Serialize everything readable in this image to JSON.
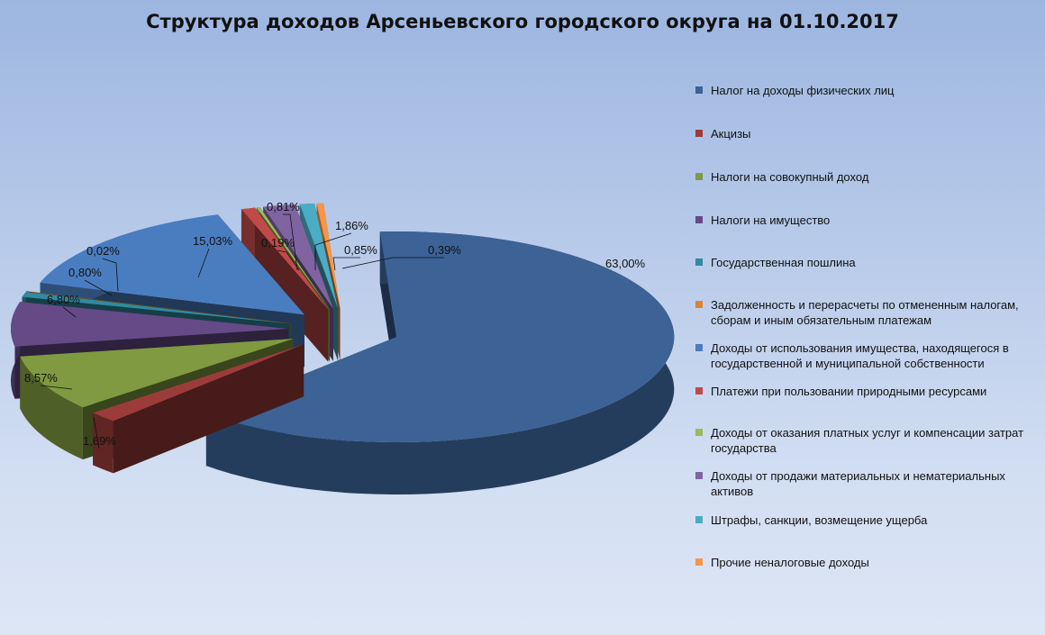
{
  "chart_data": {
    "type": "pie",
    "title": "Структура доходов Арсеньевского городского округа на 01.10.2017",
    "legend_placement": "right",
    "three_d": true,
    "slices": [
      {
        "name": "Налог на доходы физических лиц",
        "value": 63.0,
        "label": "63,00%",
        "color": "#3c6296"
      },
      {
        "name": "Акцизы",
        "value": 1.69,
        "label": "1,69%",
        "color": "#9c3c3a"
      },
      {
        "name": "Налоги на совокупный доход",
        "value": 8.57,
        "label": "8,57%",
        "color": "#7f9a40"
      },
      {
        "name": "Налоги на имущество",
        "value": 6.8,
        "label": "6,80%",
        "color": "#654a87"
      },
      {
        "name": "Государственная пошлина",
        "value": 0.8,
        "label": "0,80%",
        "color": "#318aa0"
      },
      {
        "name": "Задолженность и перерасчеты по отмененным налогам, сборам и иным обязательным платежам",
        "value": 0.02,
        "label": "0,02%",
        "color": "#e0832e"
      },
      {
        "name": "Доходы от использования имущества, находящегося в государственной и муниципальной собственности",
        "value": 15.03,
        "label": "15,03%",
        "color": "#4a7dc0"
      },
      {
        "name": "Платежи при пользовании природными ресурсами",
        "value": 0.81,
        "label": "0,81%",
        "color": "#c04a48"
      },
      {
        "name": "Доходы от оказания платных услуг и компенсации затрат государства",
        "value": 0.19,
        "label": "0,19%",
        "color": "#9bbb58"
      },
      {
        "name": "Доходы от продажи материальных и нематериальных активов",
        "value": 1.86,
        "label": "1,86%",
        "color": "#8064a2"
      },
      {
        "name": "Штрафы, санкции, возмещение ущерба",
        "value": 0.85,
        "label": "0,85%",
        "color": "#4bacc6"
      },
      {
        "name": "Прочие неналоговые доходы",
        "value": 0.39,
        "label": "0,39%",
        "color": "#f79646"
      }
    ]
  }
}
